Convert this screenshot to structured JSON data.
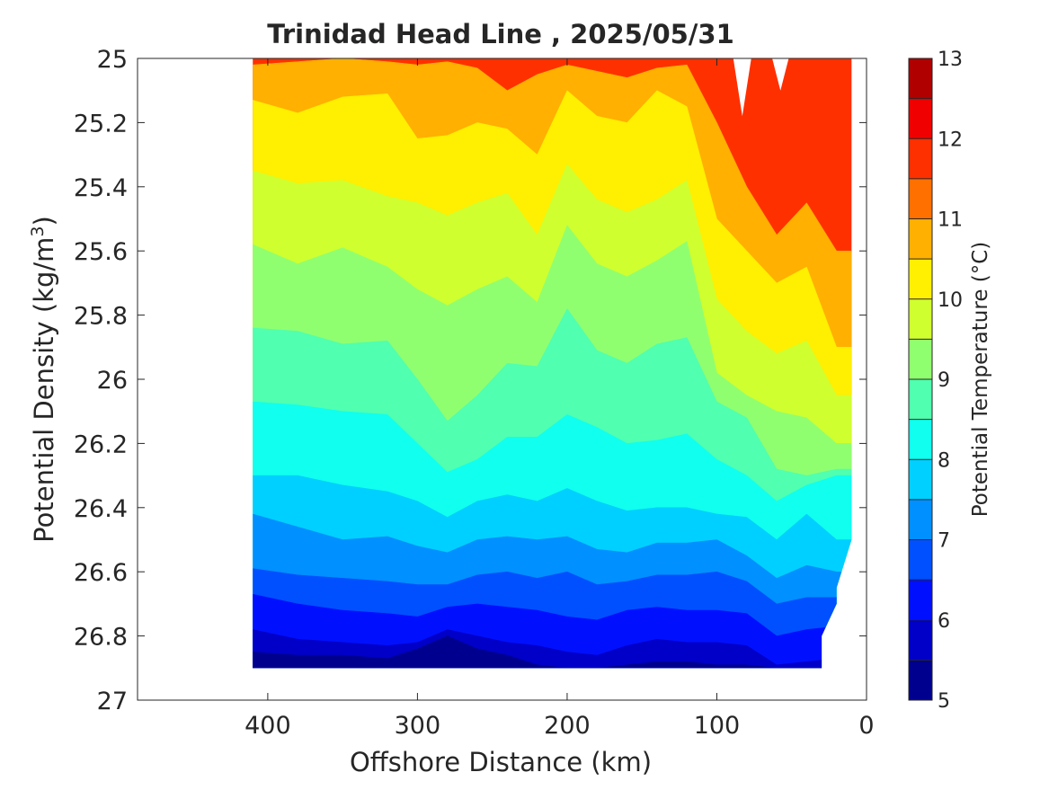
{
  "chart_data": {
    "type": "heatmap",
    "title": "Trinidad Head Line , 2025/05/31",
    "xlabel": "Offshore Distance (km)",
    "ylabel": "Potential Density (kg/m",
    "ylabel_superscript": "3",
    "ylabel_suffix": ")",
    "colorbar_label": "Potential Temperature (°C)",
    "xlim": [
      487,
      0
    ],
    "x_reversed": true,
    "ylim": [
      25,
      27
    ],
    "y_reversed": true,
    "x_ticks": [
      400,
      300,
      200,
      100,
      0
    ],
    "y_ticks": [
      25,
      25.2,
      25.4,
      25.6,
      25.8,
      26,
      26.2,
      26.4,
      26.6,
      26.8,
      27
    ],
    "y_tick_labels": [
      "25",
      "25.2",
      "25.4",
      "25.6",
      "25.8",
      "26",
      "26.2",
      "26.4",
      "26.6",
      "26.8",
      "27"
    ],
    "colorbar_ticks": [
      5,
      6,
      7,
      8,
      9,
      10,
      11,
      12,
      13
    ],
    "levels": [
      5,
      5.5,
      6,
      6.5,
      7,
      7.5,
      8,
      8.5,
      9,
      9.5,
      10,
      10.5,
      11,
      11.5,
      12,
      12.5,
      13
    ],
    "level_colors": [
      "#00008f",
      "#0000c8",
      "#0010ff",
      "#0050ff",
      "#0090ff",
      "#00d0ff",
      "#10ffef",
      "#50ffaf",
      "#90ff6f",
      "#d0ff2f",
      "#ffef00",
      "#ffb000",
      "#ff7000",
      "#ff3000",
      "#f00000",
      "#b00000"
    ],
    "section_x_range": [
      410,
      10
    ],
    "bottom_boundary": [
      [
        410,
        26.9
      ],
      [
        30,
        26.9
      ],
      [
        30,
        26.8
      ],
      [
        20,
        26.7
      ],
      [
        20,
        26.65
      ],
      [
        10,
        26.5
      ]
    ],
    "top_boundary_gaps": [
      [
        89,
        25.0,
        77,
        25.18
      ],
      [
        63,
        25.0,
        52,
        25.1
      ]
    ],
    "contour_depths": [
      {
        "level": 11,
        "x": [
          410,
          380,
          350,
          320,
          300,
          280,
          260,
          240,
          220,
          200,
          180,
          160,
          140,
          120,
          100,
          80,
          60,
          40,
          20
        ],
        "y": [
          25.02,
          25.01,
          25.0,
          25.01,
          25.02,
          25.01,
          25.03,
          25.1,
          25.05,
          25.02,
          25.04,
          25.06,
          25.03,
          25.02,
          25.2,
          25.4,
          25.55,
          25.45,
          25.6
        ]
      },
      {
        "level": 10.5,
        "x": [
          410,
          380,
          350,
          320,
          300,
          280,
          260,
          240,
          220,
          200,
          180,
          160,
          140,
          120,
          100,
          80,
          60,
          40,
          20
        ],
        "y": [
          25.13,
          25.17,
          25.12,
          25.11,
          25.25,
          25.24,
          25.2,
          25.22,
          25.3,
          25.1,
          25.18,
          25.2,
          25.1,
          25.15,
          25.5,
          25.6,
          25.7,
          25.65,
          25.9
        ]
      },
      {
        "level": 10,
        "x": [
          410,
          380,
          350,
          320,
          300,
          280,
          260,
          240,
          220,
          200,
          180,
          160,
          140,
          120,
          100,
          80,
          60,
          40,
          20
        ],
        "y": [
          25.35,
          25.39,
          25.38,
          25.43,
          25.45,
          25.49,
          25.45,
          25.42,
          25.55,
          25.33,
          25.44,
          25.48,
          25.44,
          25.38,
          25.75,
          25.85,
          25.92,
          25.88,
          26.05
        ]
      },
      {
        "level": 9.5,
        "x": [
          410,
          380,
          350,
          320,
          300,
          280,
          260,
          240,
          220,
          200,
          180,
          160,
          140,
          120,
          100,
          80,
          60,
          40,
          20
        ],
        "y": [
          25.58,
          25.64,
          25.59,
          25.65,
          25.72,
          25.77,
          25.72,
          25.68,
          25.76,
          25.52,
          25.64,
          25.68,
          25.63,
          25.57,
          25.98,
          26.05,
          26.1,
          26.12,
          26.2
        ]
      },
      {
        "level": 9,
        "x": [
          410,
          380,
          350,
          320,
          300,
          280,
          260,
          240,
          220,
          200,
          180,
          160,
          140,
          120,
          100,
          80,
          60,
          40,
          20
        ],
        "y": [
          25.84,
          25.85,
          25.89,
          25.88,
          26.0,
          26.13,
          26.05,
          25.95,
          25.96,
          25.78,
          25.91,
          25.95,
          25.89,
          25.87,
          26.07,
          26.12,
          26.28,
          26.3,
          26.28
        ]
      },
      {
        "level": 8.5,
        "x": [
          410,
          380,
          350,
          320,
          300,
          280,
          260,
          240,
          220,
          200,
          180,
          160,
          140,
          120,
          100,
          80,
          60,
          40,
          20
        ],
        "y": [
          26.07,
          26.08,
          26.1,
          26.11,
          26.2,
          26.29,
          26.25,
          26.18,
          26.18,
          26.11,
          26.15,
          26.2,
          26.19,
          26.17,
          26.25,
          26.3,
          26.38,
          26.33,
          26.3
        ]
      },
      {
        "level": 8,
        "x": [
          410,
          380,
          350,
          320,
          300,
          280,
          260,
          240,
          220,
          200,
          180,
          160,
          140,
          120,
          100,
          80,
          60,
          40,
          20
        ],
        "y": [
          26.3,
          26.3,
          26.33,
          26.35,
          26.38,
          26.43,
          26.38,
          26.36,
          26.38,
          26.34,
          26.38,
          26.41,
          26.4,
          26.4,
          26.42,
          26.43,
          26.5,
          26.42,
          26.5
        ]
      },
      {
        "level": 7.5,
        "x": [
          410,
          380,
          350,
          320,
          300,
          280,
          260,
          240,
          220,
          200,
          180,
          160,
          140,
          120,
          100,
          80,
          60,
          40,
          20
        ],
        "y": [
          26.42,
          26.46,
          26.5,
          26.49,
          26.52,
          26.54,
          26.5,
          26.49,
          26.5,
          26.49,
          26.53,
          26.54,
          26.51,
          26.51,
          26.5,
          26.55,
          26.62,
          26.58,
          26.6
        ]
      },
      {
        "level": 7,
        "x": [
          410,
          380,
          350,
          320,
          300,
          280,
          260,
          240,
          220,
          200,
          180,
          160,
          140,
          120,
          100,
          80,
          60,
          40,
          20
        ],
        "y": [
          26.59,
          26.61,
          26.62,
          26.63,
          26.64,
          26.64,
          26.61,
          26.6,
          26.62,
          26.6,
          26.64,
          26.63,
          26.61,
          26.61,
          26.6,
          26.63,
          26.7,
          26.68,
          26.68
        ]
      },
      {
        "level": 6.5,
        "x": [
          410,
          380,
          350,
          320,
          300,
          280,
          260,
          240,
          220,
          200,
          180,
          160,
          140,
          120,
          100,
          80,
          60,
          40,
          20
        ],
        "y": [
          26.67,
          26.7,
          26.72,
          26.73,
          26.74,
          26.71,
          26.7,
          26.71,
          26.72,
          26.74,
          26.75,
          26.72,
          26.71,
          26.72,
          26.72,
          26.73,
          26.8,
          26.78,
          26.77
        ]
      },
      {
        "level": 6,
        "x": [
          410,
          380,
          350,
          320,
          300,
          280,
          260,
          240,
          220,
          200,
          180,
          160,
          140,
          120,
          100,
          80,
          60,
          40,
          20
        ],
        "y": [
          26.78,
          26.81,
          26.82,
          26.83,
          26.82,
          26.78,
          26.8,
          26.82,
          26.83,
          26.85,
          26.86,
          26.83,
          26.81,
          26.82,
          26.82,
          26.83,
          26.89,
          26.88,
          26.87
        ]
      },
      {
        "level": 5.5,
        "x": [
          410,
          380,
          350,
          320,
          300,
          280,
          260,
          240,
          220,
          200,
          180,
          160,
          140,
          120,
          100,
          80,
          60,
          40,
          20
        ],
        "y": [
          26.85,
          26.86,
          26.86,
          26.87,
          26.84,
          26.8,
          26.84,
          26.86,
          26.89,
          26.9,
          26.9,
          26.89,
          26.88,
          26.88,
          26.89,
          26.89,
          26.9,
          26.9,
          26.9
        ]
      }
    ],
    "grid": false,
    "legend": "colorbar-right"
  }
}
